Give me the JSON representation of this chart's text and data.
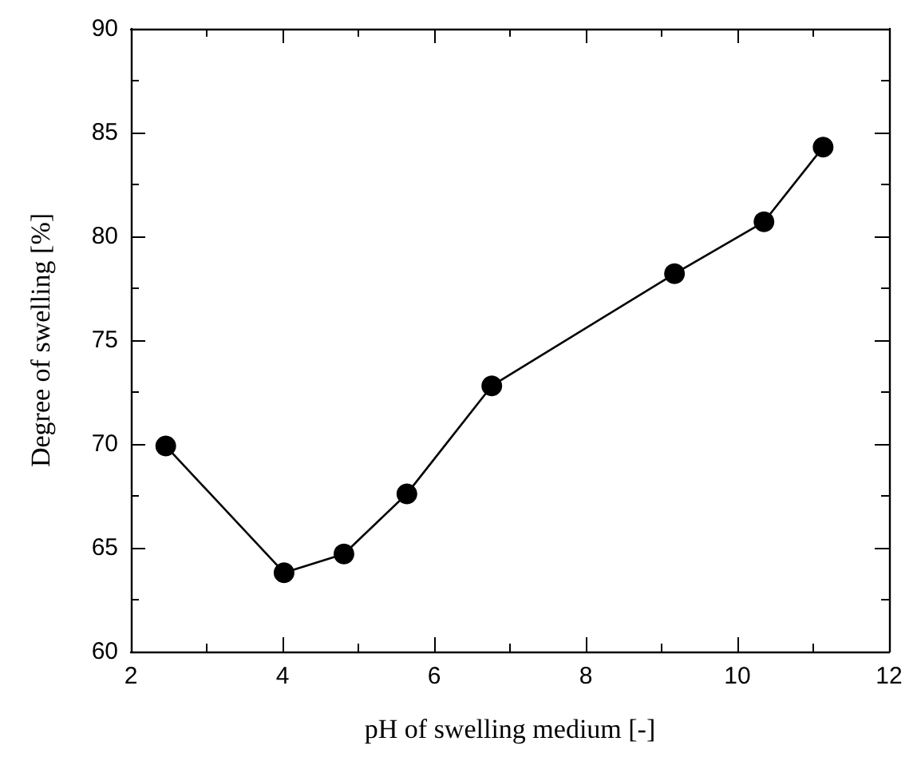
{
  "chart_data": {
    "type": "line",
    "xlabel": "pH of swelling medium [-]",
    "ylabel": "Degree of swelling [%]",
    "x": [
      2.46,
      4.02,
      4.81,
      5.64,
      6.76,
      9.17,
      10.35,
      11.13
    ],
    "series": [
      {
        "color": "#000000",
        "values": [
          69.9,
          63.8,
          64.7,
          67.6,
          72.8,
          78.2,
          80.7,
          84.3
        ]
      }
    ],
    "xlim": [
      2,
      12
    ],
    "xticks": [
      2,
      4,
      6,
      8,
      10,
      12
    ],
    "ylim": [
      60,
      90
    ],
    "yticks": [
      60,
      65,
      70,
      75,
      80,
      85,
      90
    ],
    "grid": false,
    "marker": "circle",
    "line_style": "solid"
  }
}
